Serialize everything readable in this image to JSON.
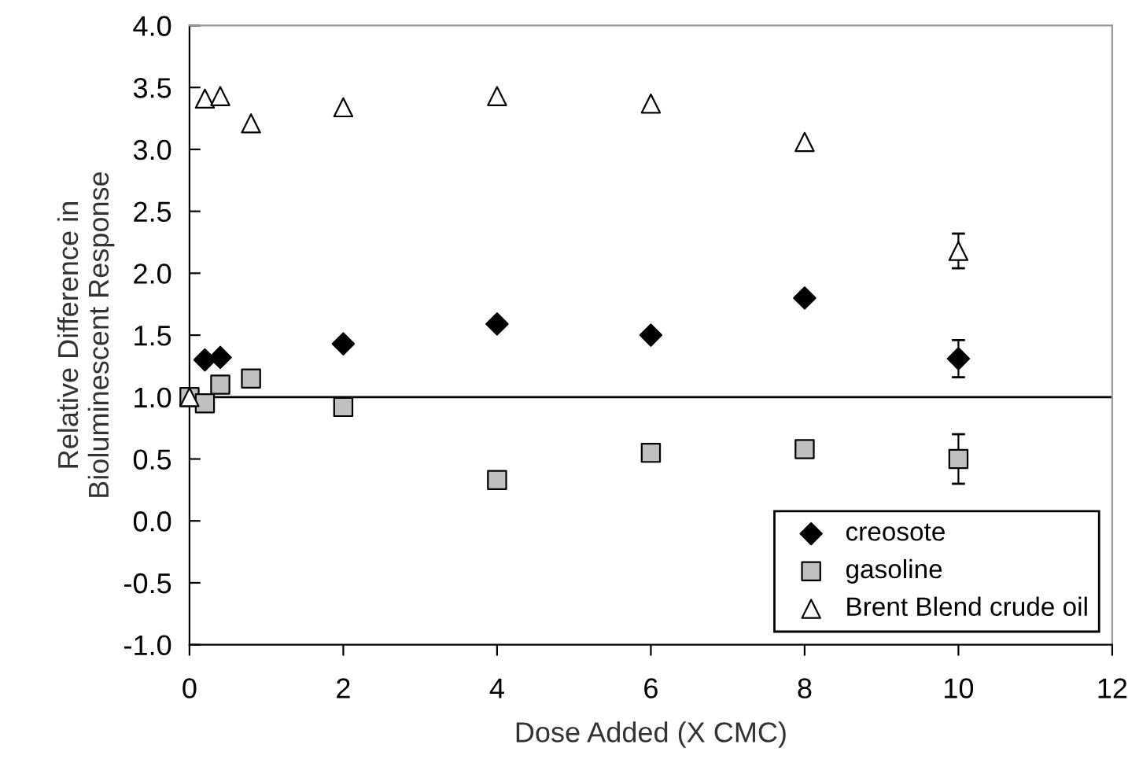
{
  "chart_data": {
    "type": "scatter",
    "xlabel": "Dose Added (X CMC)",
    "ylabel": "Relative Difference in\nBioluminescent Response",
    "xlim": [
      0,
      12
    ],
    "xticks": [
      0,
      2,
      4,
      6,
      8,
      10,
      12
    ],
    "ylim": [
      -1.0,
      4.0
    ],
    "yticks": [
      {
        "value": -1.0,
        "label": "-1.0"
      },
      {
        "value": -0.5,
        "label": "-0.5"
      },
      {
        "value": 0.0,
        "label": "0.0"
      },
      {
        "value": 0.5,
        "label": "0.5"
      },
      {
        "value": 1.0,
        "label": "1.0"
      },
      {
        "value": 1.5,
        "label": "1.5"
      },
      {
        "value": 2.0,
        "label": "2.0"
      },
      {
        "value": 2.5,
        "label": "2.5"
      },
      {
        "value": 3.0,
        "label": "3.0"
      },
      {
        "value": 3.5,
        "label": "3.5"
      },
      {
        "value": 4.0,
        "label": "4.0"
      }
    ],
    "grid": false,
    "legend": "bottom right",
    "ref_lines": [
      {
        "axis": "y",
        "value": 1.0,
        "color": "#000000",
        "line_style": "solid"
      }
    ],
    "series": [
      {
        "name": "creosote",
        "color": "#000000",
        "marker": "diamond",
        "x": [
          0.2,
          0.4,
          2,
          4,
          6,
          8,
          10
        ],
        "values": [
          1.3,
          1.32,
          1.43,
          1.59,
          1.5,
          1.8,
          1.31
        ],
        "errors": [
          null,
          null,
          null,
          null,
          null,
          null,
          0.15
        ]
      },
      {
        "name": "gasoline",
        "color": "#c0c0c0",
        "marker": "square",
        "x": [
          0,
          0.2,
          0.4,
          0.8,
          2,
          4,
          6,
          8,
          10
        ],
        "values": [
          1.0,
          0.95,
          1.1,
          1.15,
          0.92,
          0.33,
          0.55,
          0.58,
          0.5
        ],
        "errors": [
          null,
          null,
          null,
          null,
          null,
          null,
          null,
          null,
          0.2
        ]
      },
      {
        "name": "Brent Blend crude oil",
        "color": "#ffffff",
        "marker": "triangle",
        "x": [
          0,
          0.2,
          0.4,
          0.8,
          2,
          4,
          6,
          8,
          10
        ],
        "values": [
          1.0,
          3.41,
          3.43,
          3.21,
          3.34,
          3.43,
          3.37,
          3.06,
          2.18
        ],
        "errors": [
          null,
          null,
          null,
          null,
          null,
          null,
          null,
          null,
          0.14
        ]
      }
    ]
  }
}
